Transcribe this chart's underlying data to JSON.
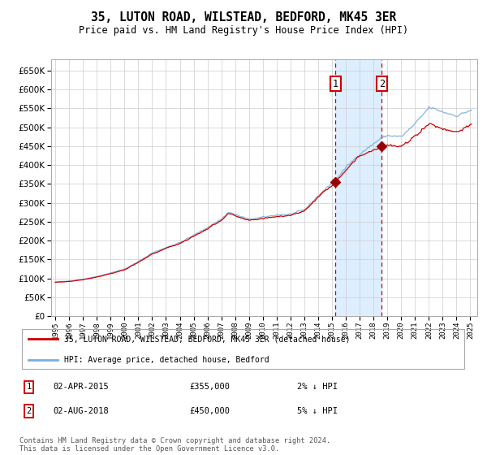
{
  "title": "35, LUTON ROAD, WILSTEAD, BEDFORD, MK45 3ER",
  "subtitle": "Price paid vs. HM Land Registry's House Price Index (HPI)",
  "legend_line1": "35, LUTON ROAD, WILSTEAD, BEDFORD, MK45 3ER (detached house)",
  "legend_line2": "HPI: Average price, detached house, Bedford",
  "purchase1_date": "02-APR-2015",
  "purchase1_price": 355000,
  "purchase1_hpi_diff": "2% ↓ HPI",
  "purchase2_date": "02-AUG-2018",
  "purchase2_price": 450000,
  "purchase2_hpi_diff": "5% ↓ HPI",
  "footnote": "Contains HM Land Registry data © Crown copyright and database right 2024.\nThis data is licensed under the Open Government Licence v3.0.",
  "line_red_color": "#cc0000",
  "line_blue_color": "#7aaddc",
  "background_color": "#ffffff",
  "grid_color": "#cccccc",
  "shade_color": "#ddeeff",
  "marker_color": "#990000",
  "vline_color": "#cc0000",
  "ylim_min": 0,
  "ylim_max": 680000,
  "ytick_step": 50000,
  "start_year": 1995,
  "end_year": 2025,
  "purchase1_year": 2015.25,
  "purchase2_year": 2018.6
}
